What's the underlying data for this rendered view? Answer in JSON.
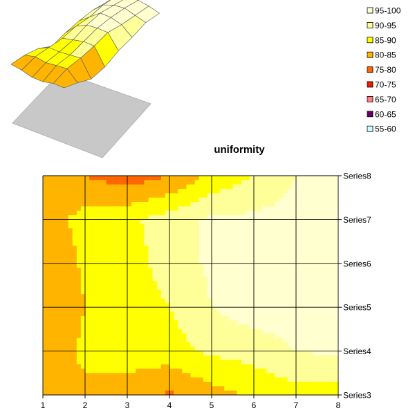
{
  "chart_data": {
    "type": "heatmap",
    "title": "uniformity",
    "xlabel": "",
    "ylabel": "",
    "x": [
      1,
      2,
      3,
      4,
      5,
      6,
      7,
      8
    ],
    "series": [
      {
        "name": "Series8",
        "values": [
          82,
          80,
          77,
          80,
          86,
          90,
          95,
          96
        ]
      },
      {
        "name": "Series7",
        "values": [
          82,
          87,
          89,
          92,
          96,
          96,
          97,
          98
        ]
      },
      {
        "name": "Series6",
        "values": [
          80,
          86,
          88,
          92,
          96,
          98,
          99,
          99
        ]
      },
      {
        "name": "Series5",
        "values": [
          80,
          85,
          87,
          90,
          95,
          98,
          98,
          98
        ]
      },
      {
        "name": "Series4",
        "values": [
          82,
          86,
          87,
          88,
          91,
          92,
          95,
          96
        ]
      },
      {
        "name": "Series3",
        "values": [
          83,
          84,
          83,
          79,
          83,
          86,
          88,
          88
        ]
      }
    ],
    "legend": {
      "placement": "top-right",
      "entries": [
        {
          "label": "95-100",
          "color": "#FFFFD0"
        },
        {
          "label": "90-95",
          "color": "#FFFF99"
        },
        {
          "label": "85-90",
          "color": "#FFFF00"
        },
        {
          "label": "80-85",
          "color": "#FFB400"
        },
        {
          "label": "75-80",
          "color": "#FF6600"
        },
        {
          "label": "70-75",
          "color": "#E81C00"
        },
        {
          "label": "65-70",
          "color": "#FF8080"
        },
        {
          "label": "60-65",
          "color": "#660066"
        },
        {
          "label": "55-60",
          "color": "#CCFFFF"
        }
      ]
    },
    "grid": true
  }
}
